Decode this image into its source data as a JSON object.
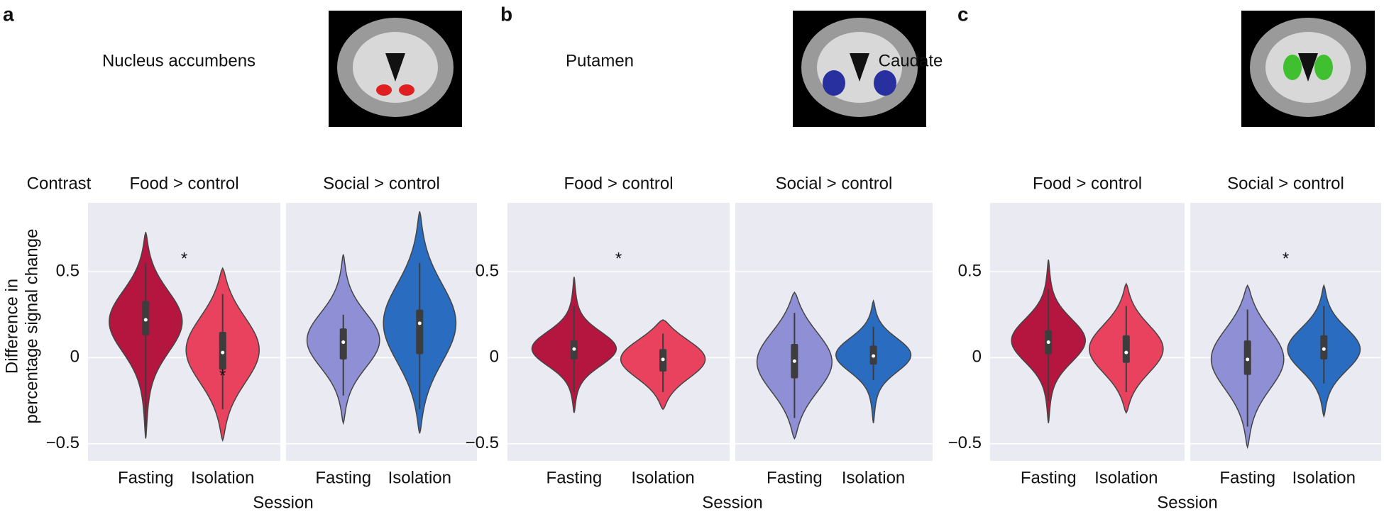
{
  "chart_data": [
    {
      "type": "violin",
      "label": "a",
      "region": "Nucleus accumbens",
      "contrast_label": "Contrast",
      "ylabel": [
        "Difference in",
        "percentage signal change"
      ],
      "xlabel": "Session",
      "ylim": [
        -0.6,
        0.9
      ],
      "yticks": [
        {
          "value": -0.5,
          "label": "−0.5"
        },
        0,
        0.5
      ],
      "grid": true,
      "facets": [
        {
          "title": "Food > control",
          "violins": [
            {
              "name": "Fasting",
              "color": "#b5163f",
              "extent": [
                -0.47,
                0.73
              ],
              "box": [
                0.13,
                0.33
              ],
              "median": 0.22,
              "whiskers": [
                -0.4,
                0.55
              ],
              "peak": 0.22
            },
            {
              "name": "Isolation",
              "color": "#e8425e",
              "extent": [
                -0.48,
                0.52
              ],
              "box": [
                -0.07,
                0.15
              ],
              "median": 0.03,
              "whiskers": [
                -0.3,
                0.37
              ],
              "peak": 0.05
            }
          ]
        },
        {
          "title": "Social > control",
          "violins": [
            {
              "name": "Fasting",
              "color": "#8e8fd4",
              "extent": [
                -0.38,
                0.6
              ],
              "box": [
                -0.01,
                0.17
              ],
              "median": 0.09,
              "whiskers": [
                -0.22,
                0.25
              ],
              "peak": 0.1
            },
            {
              "name": "Isolation",
              "color": "#2a6cc0",
              "extent": [
                -0.44,
                0.85
              ],
              "box": [
                0.02,
                0.28
              ],
              "median": 0.2,
              "whiskers": [
                -0.3,
                0.55
              ],
              "peak": 0.2
            }
          ]
        }
      ],
      "annotations": [
        {
          "text": "*",
          "facet": 0,
          "x": 0.5,
          "y": 0.57
        },
        {
          "text": "*",
          "facet": 0,
          "x": 1,
          "y": -0.11
        }
      ]
    },
    {
      "type": "violin",
      "label": "b",
      "region": "Putamen",
      "xlabel": "Session",
      "ylim": [
        -0.6,
        0.9
      ],
      "yticks": [
        {
          "value": -0.5,
          "label": "−0.5"
        },
        0,
        0.5
      ],
      "grid": true,
      "facets": [
        {
          "title": "Food > control",
          "violins": [
            {
              "name": "Fasting",
              "color": "#b5163f",
              "extent": [
                -0.32,
                0.47
              ],
              "box": [
                -0.01,
                0.1
              ],
              "median": 0.05,
              "whiskers": [
                -0.2,
                0.3
              ],
              "peak": 0.05
            },
            {
              "name": "Isolation",
              "color": "#e8425e",
              "extent": [
                -0.3,
                0.22
              ],
              "box": [
                -0.08,
                0.05
              ],
              "median": -0.01,
              "whiskers": [
                -0.2,
                0.14
              ],
              "peak": 0.0
            }
          ]
        },
        {
          "title": "Social > control",
          "violins": [
            {
              "name": "Fasting",
              "color": "#8e8fd4",
              "extent": [
                -0.47,
                0.38
              ],
              "box": [
                -0.12,
                0.08
              ],
              "median": -0.02,
              "whiskers": [
                -0.35,
                0.26
              ],
              "peak": -0.02
            },
            {
              "name": "Isolation",
              "color": "#2a6cc0",
              "extent": [
                -0.38,
                0.33
              ],
              "box": [
                -0.04,
                0.07
              ],
              "median": 0.01,
              "whiskers": [
                -0.13,
                0.18
              ],
              "peak": 0.02
            }
          ]
        }
      ],
      "annotations": [
        {
          "text": "*",
          "facet": 0,
          "x": 0.5,
          "y": 0.57
        }
      ]
    },
    {
      "type": "violin",
      "label": "c",
      "region": "Caudate",
      "xlabel": "Session",
      "ylim": [
        -0.6,
        0.9
      ],
      "yticks": [
        {
          "value": -0.5,
          "label": "−0.5"
        },
        0,
        0.5
      ],
      "grid": true,
      "facets": [
        {
          "title": "Food > control",
          "violins": [
            {
              "name": "Fasting",
              "color": "#b5163f",
              "extent": [
                -0.38,
                0.57
              ],
              "box": [
                0.02,
                0.16
              ],
              "median": 0.09,
              "whiskers": [
                -0.25,
                0.4
              ],
              "peak": 0.1
            },
            {
              "name": "Isolation",
              "color": "#e8425e",
              "extent": [
                -0.32,
                0.43
              ],
              "box": [
                -0.03,
                0.13
              ],
              "median": 0.03,
              "whiskers": [
                -0.2,
                0.3
              ],
              "peak": 0.05
            }
          ]
        },
        {
          "title": "Social > control",
          "violins": [
            {
              "name": "Fasting",
              "color": "#8e8fd4",
              "extent": [
                -0.52,
                0.42
              ],
              "box": [
                -0.1,
                0.1
              ],
              "median": -0.01,
              "whiskers": [
                -0.4,
                0.28
              ],
              "peak": 0.0
            },
            {
              "name": "Isolation",
              "color": "#2a6cc0",
              "extent": [
                -0.34,
                0.42
              ],
              "box": [
                -0.01,
                0.13
              ],
              "median": 0.05,
              "whiskers": [
                -0.15,
                0.3
              ],
              "peak": 0.05
            }
          ]
        }
      ],
      "annotations": [
        {
          "text": "*",
          "facet": 1,
          "x": 0.5,
          "y": 0.57
        }
      ]
    }
  ]
}
